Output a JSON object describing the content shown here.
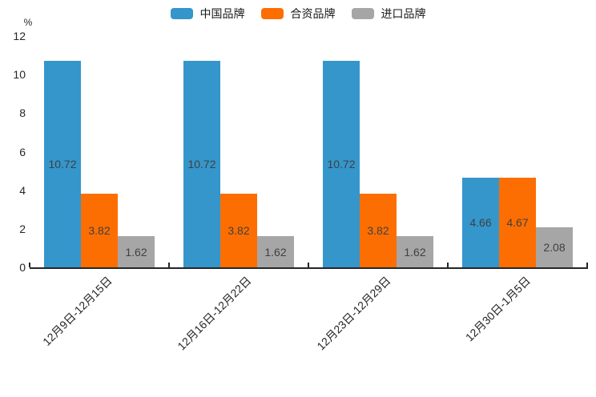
{
  "chart_data": {
    "type": "bar",
    "title": "",
    "xlabel": "",
    "ylabel": "%",
    "ylim": [
      0,
      12
    ],
    "yticks": [
      0,
      2,
      4,
      6,
      8,
      10,
      12
    ],
    "grid": false,
    "legend_position": "top",
    "categories": [
      "12月9日-12月15日",
      "12月16日-12月22日",
      "12月23日-12月29日",
      "12月30日-1月5日"
    ],
    "series": [
      {
        "name": "中国品牌",
        "color": "#3496cb",
        "values": [
          10.72,
          10.72,
          10.72,
          4.66
        ]
      },
      {
        "name": "合资品牌",
        "color": "#fd6e02",
        "values": [
          3.82,
          3.82,
          3.82,
          4.67
        ]
      },
      {
        "name": "进口品牌",
        "color": "#a6a6a6",
        "values": [
          1.62,
          1.62,
          1.62,
          2.08
        ]
      }
    ],
    "colors": {
      "axis": "#262626",
      "tick_label": "#262626",
      "bar_label": "#404040",
      "background": "#ffffff"
    }
  }
}
